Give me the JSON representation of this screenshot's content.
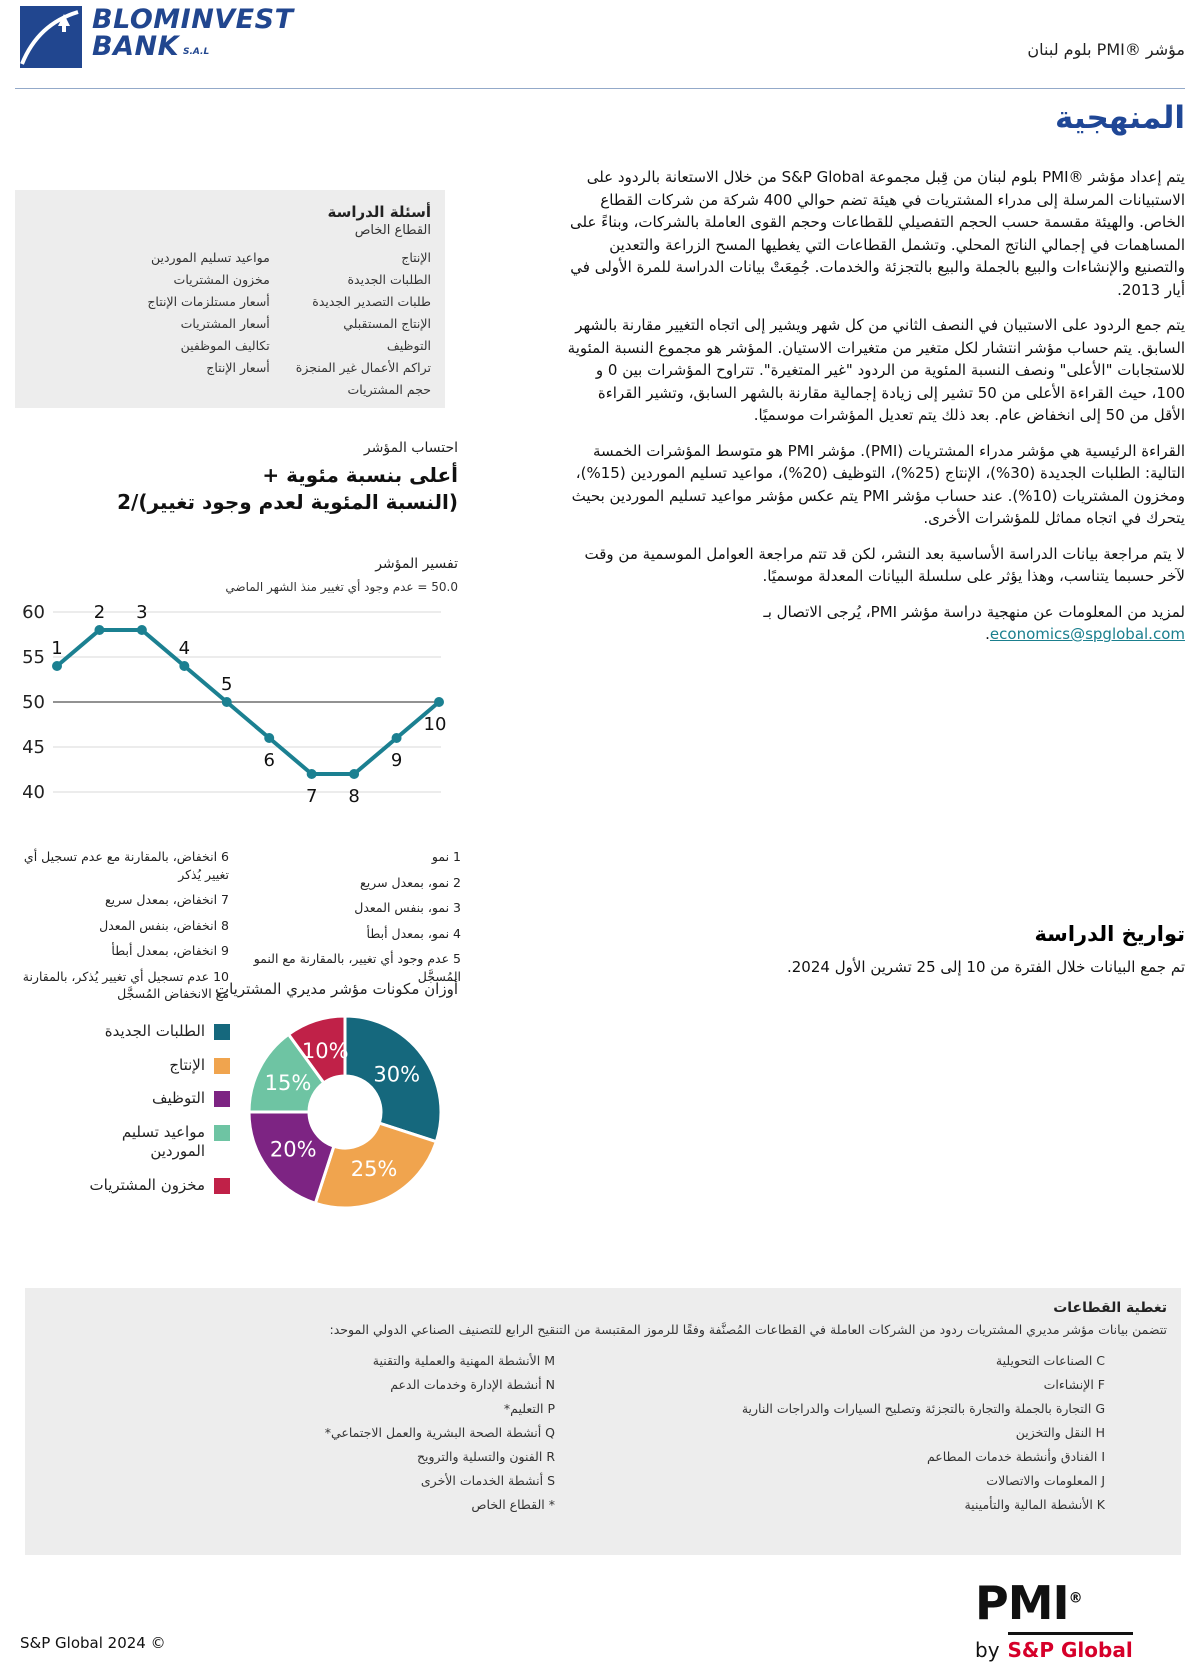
{
  "header": {
    "logo_line1": "BLOMINVEST",
    "logo_line2": "BANK",
    "logo_suffix": "S.A.L",
    "doc_title": "مؤشر ®PMI بلوم لبنان",
    "brand_blue": "#21468F"
  },
  "methodology": {
    "title": "المنهجية",
    "paragraphs": [
      "يتم إعداد مؤشر ®PMI بلوم لبنان من قِبل مجموعة S&P Global من خلال الاستعانة بالردود على الاستبيانات المرسلة إلى مدراء المشتريات في هيئة تضم حوالي 400 شركة من شركات القطاع الخاص. والهيئة مقسمة حسب الحجم التفصيلي للقطاعات وحجم القوى العاملة بالشركات، وبناءً على المساهمات في إجمالي الناتج المحلي. وتشمل القطاعات التي يغطيها المسح الزراعة والتعدين والتصنيع والإنشاءات والبيع بالجملة والبيع بالتجزئة والخدمات. جُمِعَتْ بيانات الدراسة للمرة الأولى في أيار 2013.",
      "يتم جمع الردود على الاستبيان في النصف الثاني من كل شهر ويشير إلى اتجاه التغيير مقارنة بالشهر السابق. يتم حساب مؤشر انتشار لكل متغير من متغيرات الاستيان. المؤشر هو مجموع النسبة المئوية للاستجابات \"الأعلى\" ونصف النسبة المئوية من الردود \"غير المتغيرة\". تتراوح المؤشرات بين 0 و 100، حيث القراءة الأعلى من 50 تشير إلى زيادة إجمالية مقارنة بالشهر السابق، وتشير القراءة الأقل من 50 إلى انخفاض عام. بعد ذلك يتم تعديل المؤشرات موسميًا.",
      "القراءة الرئيسية هي مؤشر مدراء المشتريات (PMI). مؤشر PMI هو متوسط المؤشرات الخمسة التالية: الطلبات الجديدة (30%)، الإنتاج (25%)، التوظيف (20%)، مواعيد تسليم الموردين (15%)، ومخزون المشتريات (10%). عند حساب مؤشر PMI يتم عكس مؤشر مواعيد تسليم الموردين بحيث يتحرك في اتجاه مماثل للمؤشرات الأخرى.",
      "لا يتم مراجعة بيانات الدراسة الأساسية بعد النشر، لكن قد تتم مراجعة العوامل الموسمية من وقت لآخر حسبما يتناسب، وهذا يؤثر على سلسلة البيانات المعدلة موسميًا."
    ],
    "contact_prefix": "لمزيد من المعلومات عن منهجية دراسة مؤشر PMI، يُرجى الاتصال بـ ",
    "contact_email": "economics@spglobal.com",
    "contact_suffix": "."
  },
  "survey_dates": {
    "title": "تواريخ الدراسة",
    "text": "تم جمع البيانات خلال الفترة من 10 إلى 25 تشرين الأول 2024."
  },
  "survey_questions": {
    "title": "أسئلة الدراسة",
    "subtitle": "القطاع الخاص",
    "col_a": [
      "الإنتاج",
      "الطلبات الجديدة",
      "طلبات التصدير الجديدة",
      "الإنتاج المستقبلي",
      "التوظيف",
      "تراكم الأعمال غير المنجزة",
      "حجم المشتريات"
    ],
    "col_b": [
      "مواعيد تسليم الموردين",
      "مخزون المشتريات",
      "أسعار مستلزمات الإنتاج",
      "أسعار المشتريات",
      "تكاليف الموظفين",
      "أسعار الإنتاج"
    ]
  },
  "index_calc": {
    "label": "احتساب المؤشر",
    "formula_line1": "أعلى بنسبة مئوية +",
    "formula_line2": "(النسبة المئوية لعدم وجود تغيير)/2"
  },
  "chart_data": [
    {
      "type": "line",
      "title": "تفسير المؤشر",
      "subtitle": "50.0 = عدم وجود أي تغيير منذ الشهر الماضي",
      "x": [
        1,
        2,
        3,
        4,
        5,
        6,
        7,
        8,
        9,
        10
      ],
      "values": [
        54,
        58,
        58,
        54,
        50,
        46,
        42,
        42,
        46,
        50
      ],
      "point_labels": [
        "1",
        "2",
        "3",
        "4",
        "5",
        "6",
        "7",
        "8",
        "9",
        "10"
      ],
      "ylim": [
        40,
        60
      ],
      "yticks": [
        40,
        45,
        50,
        55,
        60
      ],
      "baseline": 50,
      "grid": true,
      "line_color": "#1B8091",
      "legend_right": [
        "1 نمو",
        "2 نمو، بمعدل سريع",
        "3 نمو، بنفس المعدل",
        "4 نمو، بمعدل أبطأ",
        "5 عدم وجود أي تغيير، بالمقارنة مع النمو المُسجَّل"
      ],
      "legend_left": [
        "6 انخفاض، بالمقارنة مع عدم تسجيل أي تغيير يُذكر",
        "7 انخفاض، بمعدل سريع",
        "8 انخفاض، بنفس المعدل",
        "9 انخفاض، بمعدل أبطأ",
        "10 عدم تسجيل أي تغيير يُذكر، بالمقارنة مع الانخفاض المُسجَّل"
      ]
    },
    {
      "type": "pie",
      "donut": true,
      "title": "أوزان مكونات مؤشر مديري المشتريات",
      "labels": [
        "الطلبات الجديدة",
        "الإنتاج",
        "التوظيف",
        "مواعيد تسليم الموردين",
        "مخزون المشتريات"
      ],
      "values": [
        30,
        25,
        20,
        15,
        10
      ],
      "value_labels": [
        "30%",
        "25%",
        "20%",
        "15%",
        "10%"
      ],
      "colors": [
        "#15687D",
        "#F0A44E",
        "#7D2483",
        "#6EC4A3",
        "#C02148"
      ],
      "start_angle_deg": 0,
      "direction": "clockwise",
      "legend_position": "left"
    }
  ],
  "sectors": {
    "title": "تغطية القطاعات",
    "intro": "تتضمن بيانات مؤشر مديري المشتريات ردود من الشركات العاملة في القطاعات المُصنَّفة وفقًا للرموز المقتبسة من التنقيح الرابع للتصنيف الصناعي الدولي الموحد:",
    "col_right": [
      "C الصناعات التحويلية",
      "F الإنشاءات",
      "G التجارة بالجملة والتجارة بالتجزئة وتصليح السيارات والدراجات النارية",
      "H النقل والتخزين",
      "I الفنادق وأنشطة خدمات المطاعم",
      "J المعلومات والاتصالات",
      "K الأنشطة المالية والتأمينية"
    ],
    "col_left": [
      "M الأنشطة المهنية والعملية والتقنية",
      "N أنشطة الإدارة وخدمات الدعم",
      "P التعليم*",
      "Q أنشطة الصحة البشرية والعمل الاجتماعي*",
      "R الفنون والتسلية والترويح",
      "S أنشطة الخدمات الأخرى",
      "* القطاع الخاص"
    ]
  },
  "footer": {
    "copyright": "S&P Global 2024 ©",
    "pmi_wordmark": "PMI",
    "pmi_reg": "®",
    "by_label": "by",
    "brand": "S&P Global",
    "brand_red": "#D6002A"
  }
}
